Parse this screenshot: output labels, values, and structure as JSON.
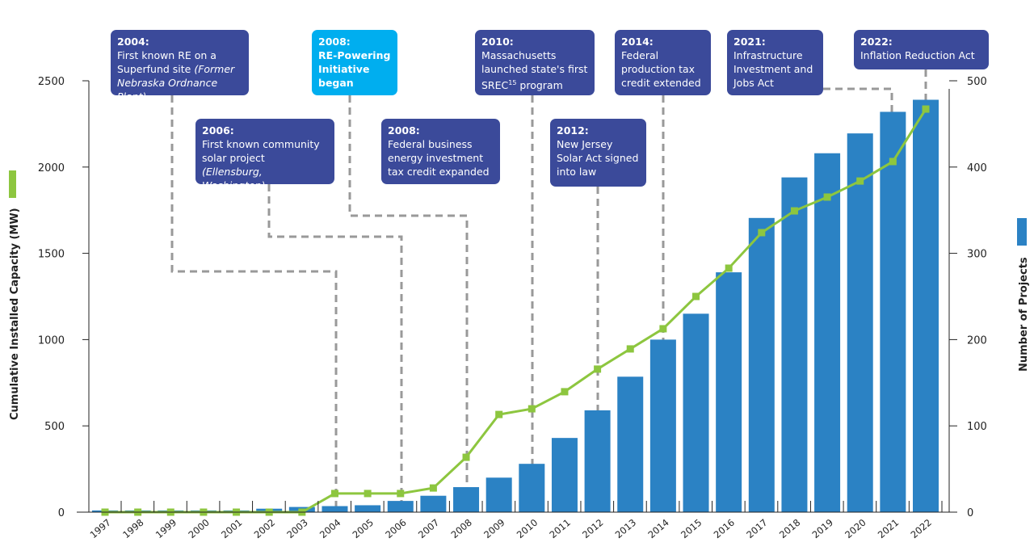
{
  "chart_data": {
    "type": "bar+line",
    "categories": [
      "1997",
      "1998",
      "1999",
      "2000",
      "2001",
      "2002",
      "2003",
      "2004",
      "2005",
      "2006",
      "2007",
      "2008",
      "2009",
      "2010",
      "2011",
      "2012",
      "2013",
      "2014",
      "2015",
      "2016",
      "2017",
      "2018",
      "2019",
      "2020",
      "2021",
      "2022"
    ],
    "series": [
      {
        "name": "Cumulative Installed Capacity (MW)",
        "type": "line",
        "axis": "left",
        "color": "#8dc63f",
        "values": [
          0,
          0,
          0,
          0,
          0,
          0,
          0,
          108,
          108,
          108,
          140,
          318,
          566,
          599,
          698,
          829,
          946,
          1063,
          1250,
          1414,
          1620,
          1746,
          1826,
          1919,
          2032,
          2336
        ]
      },
      {
        "name": "Number of Projects",
        "type": "bar",
        "axis": "right",
        "color": "#2b82c4",
        "values": [
          2,
          2,
          2,
          2,
          2,
          4,
          6,
          7,
          8,
          13,
          19,
          29,
          40,
          56,
          86,
          118,
          157,
          200,
          230,
          278,
          341,
          388,
          416,
          439,
          464,
          478
        ]
      }
    ],
    "ylabel_left": "Cumulative Installed Capacity (MW)",
    "ylabel_right": "Number of Projects",
    "ylim_left": [
      0,
      2500
    ],
    "ylim_right": [
      0,
      500
    ],
    "yticks_left": [
      "0",
      "500",
      "1000",
      "1500",
      "2000",
      "2500"
    ],
    "yticks_right": [
      "0",
      "100",
      "200",
      "300",
      "400",
      "500"
    ],
    "grid": false
  },
  "annotations": [
    {
      "year": "2004:",
      "text": "First known RE on a Superfund site ",
      "italic": "(Former Nebraska Ordnance Plant)"
    },
    {
      "year": "2006:",
      "text": "First known community solar project ",
      "italic": "(Ellensburg, Washington)"
    },
    {
      "year": "2008:",
      "text": "RE-Powering Initiative began",
      "highlight_color": "#00aeef"
    },
    {
      "year": "2008:",
      "text": "Federal business energy investment tax credit expanded"
    },
    {
      "year": "2010:",
      "text": "Massachusetts launched state's first SREC",
      "sup": "15",
      "after": " program"
    },
    {
      "year": "2012:",
      "text": "New Jersey Solar Act signed into law"
    },
    {
      "year": "2014:",
      "text": "Federal production tax credit extended"
    },
    {
      "year": "2021:",
      "text": "Infrastructure Investment and Jobs Act"
    },
    {
      "year": "2022:",
      "text": "Inflation Reduction Act"
    }
  ],
  "colors": {
    "annotation_box": "#3b4a9a",
    "connector": "#999999"
  }
}
